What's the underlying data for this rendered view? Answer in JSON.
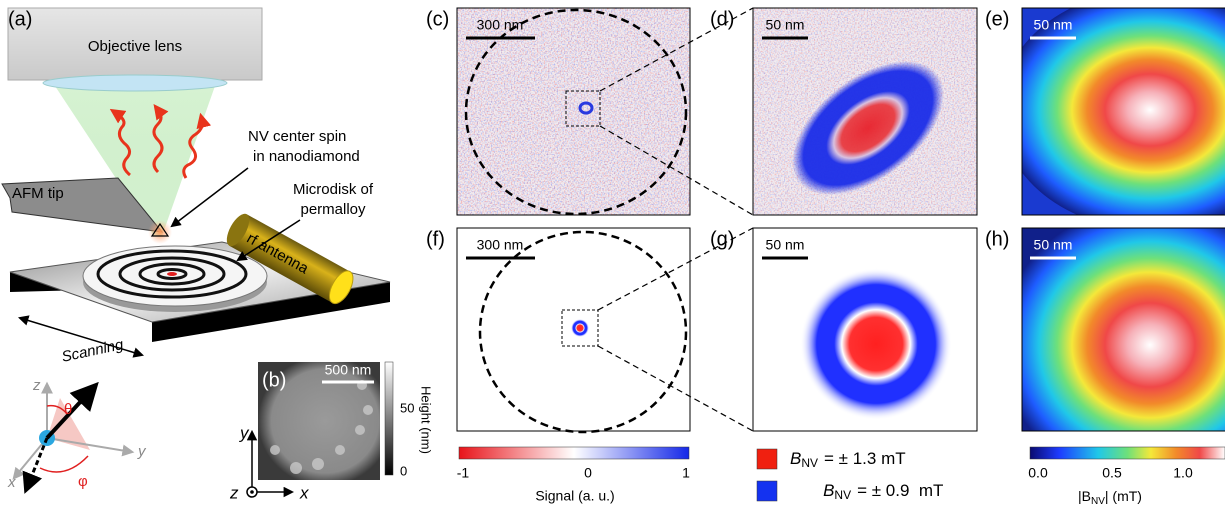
{
  "panel_a": {
    "label": "(a)",
    "objective": "Objective lens",
    "nv_label": [
      "NV center spin",
      "in nanodiamond"
    ],
    "afm_tip": "AFM tip",
    "microdisk": [
      "Microdisk of",
      "permalloy"
    ],
    "antenna": "rf antenna",
    "scanning": "Scanning",
    "axes": {
      "z": "z",
      "y": "y",
      "x": "x",
      "theta": "θ",
      "phi": "φ"
    }
  },
  "panel_b": {
    "label": "(b)",
    "scale_bar": "500 nm",
    "colorbar_label": "Height (nm)",
    "colorbar_ticks": [
      "50",
      "0"
    ],
    "axes": {
      "y": "y",
      "z": "z",
      "x": "x"
    }
  },
  "panels": [
    {
      "label": "(c)",
      "scale_bar": "300 nm"
    },
    {
      "label": "(d)",
      "scale_bar": "50 nm"
    },
    {
      "label": "(e)",
      "scale_bar": "50 nm"
    },
    {
      "label": "(f)",
      "scale_bar": "300 nm"
    },
    {
      "label": "(g)",
      "scale_bar": "50 nm"
    },
    {
      "label": "(h)",
      "scale_bar": "50 nm"
    }
  ],
  "signal_colorbar": {
    "ticks": [
      "-1",
      "0",
      "1"
    ],
    "label": "Signal (a. u.)"
  },
  "legend": [
    {
      "symbol": "B",
      "subscript": "NV",
      "text": "= ± 1.3 mT"
    },
    {
      "symbol": "B",
      "subscript": "NV",
      "text": "= ± 0.9  mT"
    }
  ],
  "field_colorbar": {
    "ticks": [
      "0.0",
      "0.5",
      "1.0"
    ],
    "label": [
      "|B",
      "NV",
      "| (mT)"
    ]
  }
}
